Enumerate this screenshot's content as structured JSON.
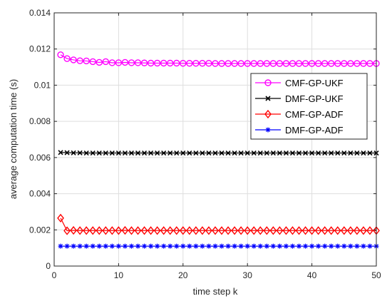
{
  "chart_data": {
    "type": "line",
    "xlabel": "time step k",
    "ylabel": "average computation time (s)",
    "xlim": [
      0,
      50
    ],
    "ylim": [
      0,
      0.014
    ],
    "xticks": [
      0,
      10,
      20,
      30,
      40,
      50
    ],
    "yticks": [
      0,
      0.002,
      0.004,
      0.006,
      0.008,
      0.01,
      0.012,
      0.014
    ],
    "ytick_labels": [
      "0",
      "0.002",
      "0.004",
      "0.006",
      "0.008",
      "0.01",
      "0.012",
      "0.014"
    ],
    "grid": true,
    "legend_position": "right",
    "x": [
      1,
      2,
      3,
      4,
      5,
      6,
      7,
      8,
      9,
      10,
      11,
      12,
      13,
      14,
      15,
      16,
      17,
      18,
      19,
      20,
      21,
      22,
      23,
      24,
      25,
      26,
      27,
      28,
      29,
      30,
      31,
      32,
      33,
      34,
      35,
      36,
      37,
      38,
      39,
      40,
      41,
      42,
      43,
      44,
      45,
      46,
      47,
      48,
      49,
      50
    ],
    "series": [
      {
        "name": "CMF-GP-UKF",
        "color": "#ff00ff",
        "marker": "circle",
        "values": [
          0.01168,
          0.01147,
          0.0114,
          0.01135,
          0.01134,
          0.0113,
          0.01126,
          0.0113,
          0.01124,
          0.01124,
          0.01126,
          0.01124,
          0.01124,
          0.01123,
          0.01122,
          0.01122,
          0.01122,
          0.01122,
          0.01122,
          0.01121,
          0.01121,
          0.01121,
          0.01121,
          0.01121,
          0.0112,
          0.0112,
          0.0112,
          0.0112,
          0.0112,
          0.0112,
          0.0112,
          0.0112,
          0.0112,
          0.0112,
          0.0112,
          0.0112,
          0.0112,
          0.0112,
          0.0112,
          0.0112,
          0.0112,
          0.0112,
          0.0112,
          0.0112,
          0.0112,
          0.0112,
          0.0112,
          0.0112,
          0.0112,
          0.0112
        ]
      },
      {
        "name": "DMF-GP-UKF",
        "color": "#000000",
        "marker": "x",
        "values": [
          0.00628,
          0.00627,
          0.00626,
          0.00626,
          0.00625,
          0.00625,
          0.00625,
          0.00625,
          0.00625,
          0.00625,
          0.00625,
          0.00625,
          0.00625,
          0.00625,
          0.00625,
          0.00625,
          0.00625,
          0.00625,
          0.00625,
          0.00625,
          0.00625,
          0.00625,
          0.00625,
          0.00625,
          0.00625,
          0.00625,
          0.00625,
          0.00625,
          0.00625,
          0.00625,
          0.00625,
          0.00625,
          0.00625,
          0.00625,
          0.00625,
          0.00625,
          0.00625,
          0.00625,
          0.00625,
          0.00625,
          0.00625,
          0.00625,
          0.00625,
          0.00625,
          0.00625,
          0.00625,
          0.00625,
          0.00625,
          0.00625,
          0.00625
        ]
      },
      {
        "name": "CMF-GP-ADF",
        "color": "#ff0000",
        "marker": "diamond",
        "values": [
          0.00265,
          0.00195,
          0.00197,
          0.00196,
          0.00196,
          0.00196,
          0.00196,
          0.00196,
          0.00196,
          0.00196,
          0.00197,
          0.00196,
          0.00196,
          0.00196,
          0.00196,
          0.00196,
          0.00196,
          0.00196,
          0.00196,
          0.00196,
          0.00196,
          0.00196,
          0.00196,
          0.00196,
          0.00196,
          0.00196,
          0.00196,
          0.00196,
          0.00196,
          0.00196,
          0.00196,
          0.00196,
          0.00196,
          0.00196,
          0.00196,
          0.00196,
          0.00196,
          0.00196,
          0.00196,
          0.00196,
          0.00196,
          0.00196,
          0.00196,
          0.00196,
          0.00196,
          0.00196,
          0.00196,
          0.00196,
          0.00196,
          0.00196
        ]
      },
      {
        "name": "DMF-GP-ADF",
        "color": "#0000ff",
        "marker": "asterisk",
        "values": [
          0.0011,
          0.0011,
          0.0011,
          0.0011,
          0.0011,
          0.0011,
          0.0011,
          0.0011,
          0.0011,
          0.0011,
          0.0011,
          0.0011,
          0.0011,
          0.0011,
          0.0011,
          0.0011,
          0.0011,
          0.0011,
          0.0011,
          0.0011,
          0.0011,
          0.0011,
          0.0011,
          0.0011,
          0.0011,
          0.0011,
          0.0011,
          0.0011,
          0.0011,
          0.0011,
          0.0011,
          0.0011,
          0.0011,
          0.0011,
          0.0011,
          0.0011,
          0.0011,
          0.0011,
          0.0011,
          0.0011,
          0.0011,
          0.0011,
          0.0011,
          0.0011,
          0.0011,
          0.0011,
          0.0011,
          0.0011,
          0.0011,
          0.0011
        ]
      }
    ]
  }
}
